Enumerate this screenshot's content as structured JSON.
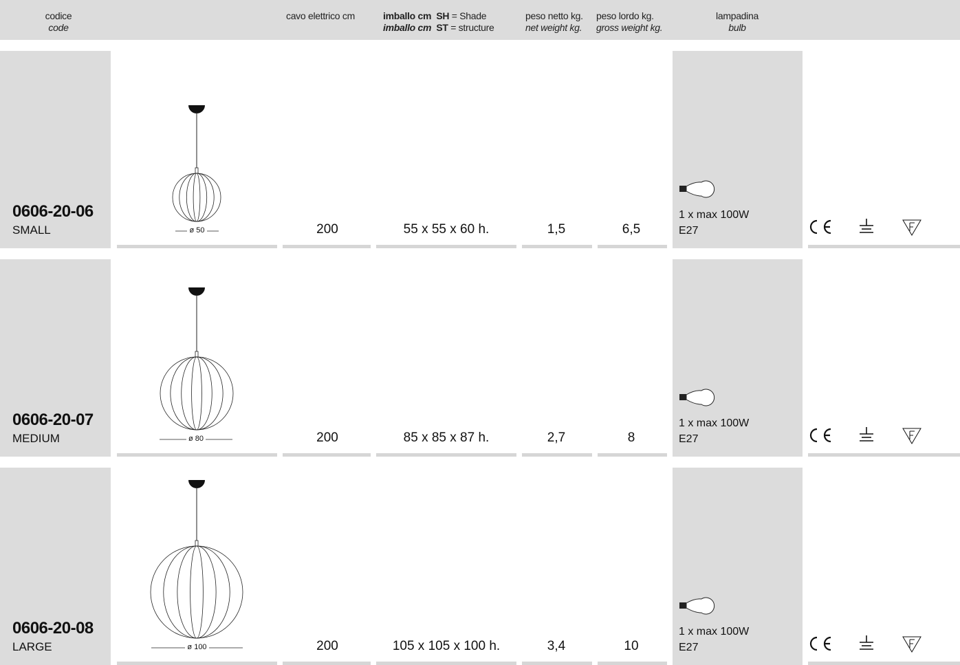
{
  "header": {
    "code_it": "codice",
    "code_en": "code",
    "cable": "cavo elettrico cm",
    "packaging": {
      "line1": {
        "label": "imballo cm",
        "key": "SH",
        "text": "= Shade"
      },
      "line2": {
        "label": "imballo cm",
        "key": "ST",
        "text": "= structure"
      }
    },
    "net_weight_it": "peso netto kg.",
    "net_weight_en": "net weight kg.",
    "gross_weight_it": "peso lordo kg.",
    "gross_weight_en": "gross weight kg.",
    "bulb_it": "lampadina",
    "bulb_en": "bulb"
  },
  "rows": [
    {
      "code": "0606-20-06",
      "size": "SMALL",
      "diameter": "ø 50",
      "cable": "200",
      "packaging": "55 x 55 x 60 h.",
      "net_weight": "1,5",
      "gross_weight": "6,5",
      "bulb": "1 x max 100W",
      "socket": "E27"
    },
    {
      "code": "0606-20-07",
      "size": "MEDIUM",
      "diameter": "ø 80",
      "cable": "200",
      "packaging": "85 x 85 x 87 h.",
      "net_weight": "2,7",
      "gross_weight": "8",
      "bulb": "1 x max 100W",
      "socket": "E27"
    },
    {
      "code": "0606-20-08",
      "size": "LARGE",
      "diameter": "ø 100",
      "cable": "200",
      "packaging": "105 x 105 x 100 h.",
      "net_weight": "3,4",
      "gross_weight": "10",
      "bulb": "1 x max 100W",
      "socket": "E27"
    }
  ]
}
